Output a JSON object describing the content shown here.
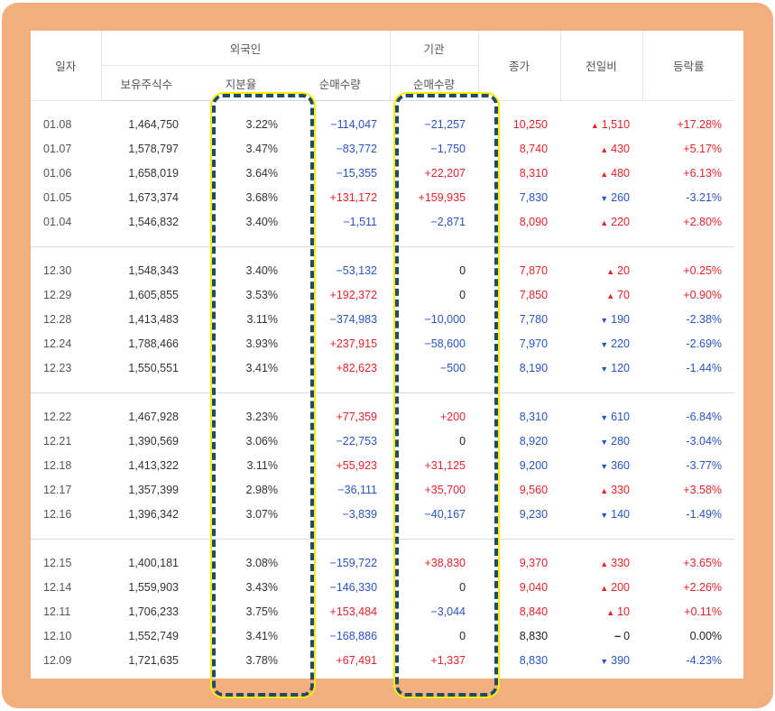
{
  "headers": {
    "date": "일자",
    "foreign_group": "외국인",
    "institution_group": "기관",
    "holdings": "보유주식수",
    "ratio": "지분율",
    "foreign_net": "순매수량",
    "inst_net": "순매수량",
    "close": "종가",
    "change": "전일비",
    "rate": "등락률"
  },
  "colors": {
    "frame": "#f3ae7d",
    "up": "#e4232b",
    "down": "#2754c4",
    "highlight_outline": "#1f4a6a",
    "highlight_glow": "#f6f000"
  },
  "groups": [
    {
      "rows": [
        {
          "date": "01.08",
          "holdings": "1,464,750",
          "ratio": "3.22%",
          "foreign_net": "−114,047",
          "fn_dir": "down",
          "inst_net": "−21,257",
          "in_dir": "down",
          "close": "10,250",
          "close_dir": "up",
          "change": "1,510",
          "change_dir": "up",
          "rate": "+17.28%",
          "rate_dir": "up"
        },
        {
          "date": "01.07",
          "holdings": "1,578,797",
          "ratio": "3.47%",
          "foreign_net": "−83,772",
          "fn_dir": "down",
          "inst_net": "−1,750",
          "in_dir": "down",
          "close": "8,740",
          "close_dir": "up",
          "change": "430",
          "change_dir": "up",
          "rate": "+5.17%",
          "rate_dir": "up"
        },
        {
          "date": "01.06",
          "holdings": "1,658,019",
          "ratio": "3.64%",
          "foreign_net": "−15,355",
          "fn_dir": "down",
          "inst_net": "+22,207",
          "in_dir": "up",
          "close": "8,310",
          "close_dir": "up",
          "change": "480",
          "change_dir": "up",
          "rate": "+6.13%",
          "rate_dir": "up"
        },
        {
          "date": "01.05",
          "holdings": "1,673,374",
          "ratio": "3.68%",
          "foreign_net": "+131,172",
          "fn_dir": "up",
          "inst_net": "+159,935",
          "in_dir": "up",
          "close": "7,830",
          "close_dir": "down",
          "change": "260",
          "change_dir": "down",
          "rate": "-3.21%",
          "rate_dir": "down"
        },
        {
          "date": "01.04",
          "holdings": "1,546,832",
          "ratio": "3.40%",
          "foreign_net": "−1,511",
          "fn_dir": "down",
          "inst_net": "−2,871",
          "in_dir": "down",
          "close": "8,090",
          "close_dir": "up",
          "change": "220",
          "change_dir": "up",
          "rate": "+2.80%",
          "rate_dir": "up"
        }
      ]
    },
    {
      "rows": [
        {
          "date": "12.30",
          "holdings": "1,548,343",
          "ratio": "3.40%",
          "foreign_net": "−53,132",
          "fn_dir": "down",
          "inst_net": "0",
          "in_dir": "flat",
          "close": "7,870",
          "close_dir": "up",
          "change": "20",
          "change_dir": "up",
          "rate": "+0.25%",
          "rate_dir": "up"
        },
        {
          "date": "12.29",
          "holdings": "1,605,855",
          "ratio": "3.53%",
          "foreign_net": "+192,372",
          "fn_dir": "up",
          "inst_net": "0",
          "in_dir": "flat",
          "close": "7,850",
          "close_dir": "up",
          "change": "70",
          "change_dir": "up",
          "rate": "+0.90%",
          "rate_dir": "up"
        },
        {
          "date": "12.28",
          "holdings": "1,413,483",
          "ratio": "3.11%",
          "foreign_net": "−374,983",
          "fn_dir": "down",
          "inst_net": "−10,000",
          "in_dir": "down",
          "close": "7,780",
          "close_dir": "down",
          "change": "190",
          "change_dir": "down",
          "rate": "-2.38%",
          "rate_dir": "down"
        },
        {
          "date": "12.24",
          "holdings": "1,788,466",
          "ratio": "3.93%",
          "foreign_net": "+237,915",
          "fn_dir": "up",
          "inst_net": "−58,600",
          "in_dir": "down",
          "close": "7,970",
          "close_dir": "down",
          "change": "220",
          "change_dir": "down",
          "rate": "-2.69%",
          "rate_dir": "down"
        },
        {
          "date": "12.23",
          "holdings": "1,550,551",
          "ratio": "3.41%",
          "foreign_net": "+82,623",
          "fn_dir": "up",
          "inst_net": "−500",
          "in_dir": "down",
          "close": "8,190",
          "close_dir": "down",
          "change": "120",
          "change_dir": "down",
          "rate": "-1.44%",
          "rate_dir": "down"
        }
      ]
    },
    {
      "rows": [
        {
          "date": "12.22",
          "holdings": "1,467,928",
          "ratio": "3.23%",
          "foreign_net": "+77,359",
          "fn_dir": "up",
          "inst_net": "+200",
          "in_dir": "up",
          "close": "8,310",
          "close_dir": "down",
          "change": "610",
          "change_dir": "down",
          "rate": "-6.84%",
          "rate_dir": "down"
        },
        {
          "date": "12.21",
          "holdings": "1,390,569",
          "ratio": "3.06%",
          "foreign_net": "−22,753",
          "fn_dir": "down",
          "inst_net": "0",
          "in_dir": "flat",
          "close": "8,920",
          "close_dir": "down",
          "change": "280",
          "change_dir": "down",
          "rate": "-3.04%",
          "rate_dir": "down"
        },
        {
          "date": "12.18",
          "holdings": "1,413,322",
          "ratio": "3.11%",
          "foreign_net": "+55,923",
          "fn_dir": "up",
          "inst_net": "+31,125",
          "in_dir": "up",
          "close": "9,200",
          "close_dir": "down",
          "change": "360",
          "change_dir": "down",
          "rate": "-3.77%",
          "rate_dir": "down"
        },
        {
          "date": "12.17",
          "holdings": "1,357,399",
          "ratio": "2.98%",
          "foreign_net": "−36,111",
          "fn_dir": "down",
          "inst_net": "+35,700",
          "in_dir": "up",
          "close": "9,560",
          "close_dir": "up",
          "change": "330",
          "change_dir": "up",
          "rate": "+3.58%",
          "rate_dir": "up"
        },
        {
          "date": "12.16",
          "holdings": "1,396,342",
          "ratio": "3.07%",
          "foreign_net": "−3,839",
          "fn_dir": "down",
          "inst_net": "−40,167",
          "in_dir": "down",
          "close": "9,230",
          "close_dir": "down",
          "change": "140",
          "change_dir": "down",
          "rate": "-1.49%",
          "rate_dir": "down"
        }
      ]
    },
    {
      "rows": [
        {
          "date": "12.15",
          "holdings": "1,400,181",
          "ratio": "3.08%",
          "foreign_net": "−159,722",
          "fn_dir": "down",
          "inst_net": "+38,830",
          "in_dir": "up",
          "close": "9,370",
          "close_dir": "up",
          "change": "330",
          "change_dir": "up",
          "rate": "+3.65%",
          "rate_dir": "up"
        },
        {
          "date": "12.14",
          "holdings": "1,559,903",
          "ratio": "3.43%",
          "foreign_net": "−146,330",
          "fn_dir": "down",
          "inst_net": "0",
          "in_dir": "flat",
          "close": "9,040",
          "close_dir": "up",
          "change": "200",
          "change_dir": "up",
          "rate": "+2.26%",
          "rate_dir": "up"
        },
        {
          "date": "12.11",
          "holdings": "1,706,233",
          "ratio": "3.75%",
          "foreign_net": "+153,484",
          "fn_dir": "up",
          "inst_net": "−3,044",
          "in_dir": "down",
          "close": "8,840",
          "close_dir": "up",
          "change": "10",
          "change_dir": "up",
          "rate": "+0.11%",
          "rate_dir": "up"
        },
        {
          "date": "12.10",
          "holdings": "1,552,749",
          "ratio": "3.41%",
          "foreign_net": "−168,886",
          "fn_dir": "down",
          "inst_net": "0",
          "in_dir": "flat",
          "close": "8,830",
          "close_dir": "flat",
          "change": "0",
          "change_dir": "flat",
          "rate": "0.00%",
          "rate_dir": "flat"
        },
        {
          "date": "12.09",
          "holdings": "1,721,635",
          "ratio": "3.78%",
          "foreign_net": "+67,491",
          "fn_dir": "up",
          "inst_net": "+1,337",
          "in_dir": "up",
          "close": "8,830",
          "close_dir": "down",
          "change": "390",
          "change_dir": "down",
          "rate": "-4.23%",
          "rate_dir": "down"
        }
      ]
    }
  ]
}
